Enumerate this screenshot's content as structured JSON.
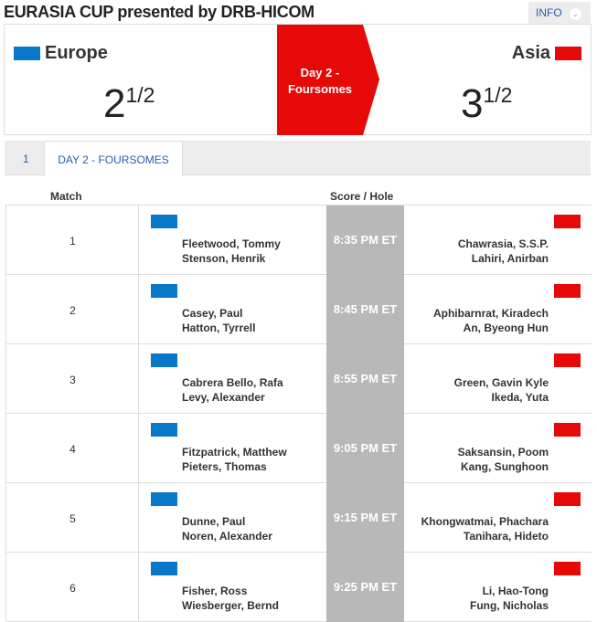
{
  "header": {
    "title": "EURASIA CUP presented by DRB-HICOM",
    "info_label": "INFO",
    "info_icon": "chevron-down-icon"
  },
  "scoreboard": {
    "left": {
      "team": "Europe",
      "score_whole": "2",
      "score_frac": "1/2",
      "color": "#0a78c8"
    },
    "right": {
      "team": "Asia",
      "score_whole": "3",
      "score_frac": "1/2",
      "color": "#e70808"
    },
    "session_line1": "Day 2 -",
    "session_line2": "Foursomes"
  },
  "tabs": [
    {
      "label": "1"
    },
    {
      "label": "DAY 2 - FOURSOMES",
      "active": true
    }
  ],
  "table": {
    "headers": {
      "match": "Match",
      "score": "Score / Hole"
    },
    "rows": [
      {
        "match": "1",
        "europe": [
          "Fleetwood, Tommy",
          "Stenson, Henrik"
        ],
        "time": "8:35 PM ET",
        "asia": [
          "Chawrasia, S.S.P.",
          "Lahiri, Anirban"
        ]
      },
      {
        "match": "2",
        "europe": [
          "Casey, Paul",
          "Hatton, Tyrrell"
        ],
        "time": "8:45 PM ET",
        "asia": [
          "Aphibarnrat, Kiradech",
          "An, Byeong Hun"
        ]
      },
      {
        "match": "3",
        "europe": [
          "Cabrera Bello, Rafa",
          "Levy, Alexander"
        ],
        "time": "8:55 PM ET",
        "asia": [
          "Green, Gavin Kyle",
          "Ikeda, Yuta"
        ]
      },
      {
        "match": "4",
        "europe": [
          "Fitzpatrick, Matthew",
          "Pieters, Thomas"
        ],
        "time": "9:05 PM ET",
        "asia": [
          "Saksansin, Poom",
          "Kang, Sunghoon"
        ]
      },
      {
        "match": "5",
        "europe": [
          "Dunne, Paul",
          "Noren, Alexander"
        ],
        "time": "9:15 PM ET",
        "asia": [
          "Khongwatmai, Phachara",
          "Tanihara, Hideto"
        ]
      },
      {
        "match": "6",
        "europe": [
          "Fisher, Ross",
          "Wiesberger, Bernd"
        ],
        "time": "9:25 PM ET",
        "asia": [
          "Li, Hao-Tong",
          "Fung, Nicholas"
        ]
      }
    ]
  }
}
